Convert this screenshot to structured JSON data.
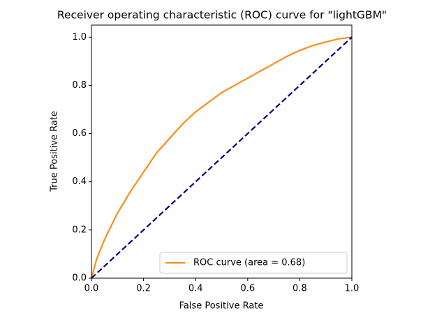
{
  "chart_data": {
    "type": "line",
    "title": "Receiver operating characteristic (ROC) curve for \"lightGBM\"",
    "x_label": "False Positive Rate",
    "y_label": "True Positive Rate",
    "xlim": [
      0,
      1
    ],
    "ylim": [
      0,
      1.05
    ],
    "xticks": [
      {
        "value": 0,
        "label": "0.0"
      },
      0.2,
      0.4,
      0.6,
      0.8,
      {
        "value": 1,
        "label": "1.0"
      }
    ],
    "yticks": [
      {
        "value": 0,
        "label": "0.0"
      },
      0.2,
      0.4,
      0.6,
      0.8,
      {
        "value": 1,
        "label": "1.0"
      }
    ],
    "legend": "lower right",
    "series": [
      {
        "name": "ROC curve (area = 0.68)",
        "color": "#ff8c1a",
        "dash": false,
        "x": [
          0,
          0.02,
          0.05,
          0.1,
          0.15,
          0.2,
          0.25,
          0.3,
          0.35,
          0.4,
          0.45,
          0.5,
          0.55,
          0.6,
          0.65,
          0.7,
          0.75,
          0.8,
          0.85,
          0.9,
          0.95,
          1
        ],
        "values": [
          0,
          0.08,
          0.16,
          0.27,
          0.36,
          0.44,
          0.52,
          0.58,
          0.64,
          0.69,
          0.73,
          0.77,
          0.8,
          0.83,
          0.86,
          0.89,
          0.92,
          0.945,
          0.965,
          0.98,
          0.993,
          1
        ]
      },
      {
        "color": "#000080",
        "dash": true,
        "x": [
          0,
          1
        ],
        "values": [
          0,
          1
        ]
      }
    ]
  }
}
